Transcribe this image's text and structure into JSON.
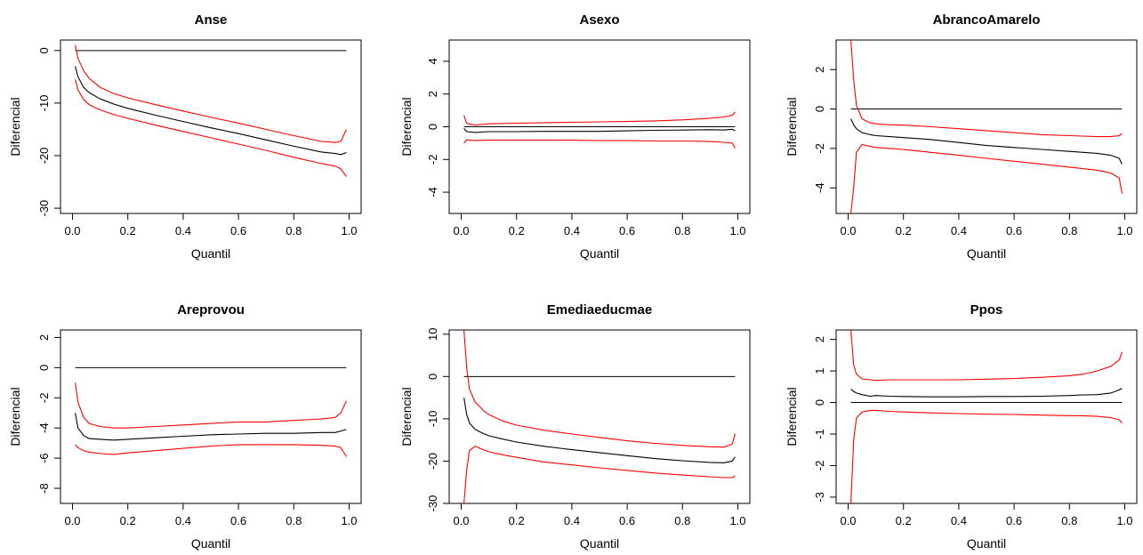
{
  "colors": {
    "estimate": "#000000",
    "bounds": "#ff0000",
    "zero_line": "#000000",
    "axes": "#000000"
  },
  "chart_data": [
    {
      "type": "line",
      "title": "Anse",
      "xlabel": "Quantil",
      "ylabel": "Diferencial",
      "xlim": [
        0,
        1
      ],
      "ylim": [
        -31,
        2
      ],
      "xticks": [
        0.0,
        0.2,
        0.4,
        0.6,
        0.8,
        1.0
      ],
      "xtick_labels": [
        "0.0",
        "0.2",
        "0.4",
        "0.6",
        "0.8",
        "1.0"
      ],
      "yticks": [
        -30,
        -20,
        -10,
        0
      ],
      "ytick_labels": [
        "-30",
        "-20",
        "-10",
        "0"
      ],
      "hline": 0,
      "x": [
        0.01,
        0.02,
        0.04,
        0.06,
        0.1,
        0.15,
        0.2,
        0.3,
        0.4,
        0.5,
        0.6,
        0.7,
        0.8,
        0.9,
        0.95,
        0.97,
        0.99
      ],
      "series": [
        {
          "role": "estimate",
          "values": [
            -3.0,
            -5.0,
            -7.0,
            -8.0,
            -9.2,
            -10.2,
            -11.0,
            -12.3,
            -13.5,
            -14.7,
            -15.8,
            -17.0,
            -18.2,
            -19.3,
            -19.6,
            -19.8,
            -19.4
          ]
        },
        {
          "role": "upper",
          "values": [
            1.0,
            -1.5,
            -3.8,
            -5.3,
            -7.0,
            -8.2,
            -9.0,
            -10.3,
            -11.5,
            -12.7,
            -13.8,
            -15.0,
            -16.2,
            -17.3,
            -17.5,
            -17.3,
            -15.0
          ]
        },
        {
          "role": "lower",
          "values": [
            -5.5,
            -7.5,
            -9.3,
            -10.3,
            -11.3,
            -12.2,
            -12.9,
            -14.2,
            -15.4,
            -16.6,
            -17.8,
            -19.0,
            -20.3,
            -21.5,
            -22.0,
            -22.5,
            -24.0
          ]
        }
      ]
    },
    {
      "type": "line",
      "title": "Asexo",
      "xlabel": "Quantil",
      "ylabel": "Diferencial",
      "xlim": [
        0,
        1
      ],
      "ylim": [
        -5.3,
        5.3
      ],
      "xticks": [
        0.0,
        0.2,
        0.4,
        0.6,
        0.8,
        1.0
      ],
      "xtick_labels": [
        "0.0",
        "0.2",
        "0.4",
        "0.6",
        "0.8",
        "1.0"
      ],
      "yticks": [
        -4,
        -2,
        0,
        2,
        4
      ],
      "ytick_labels": [
        "-4",
        "-2",
        "0",
        "2",
        "4"
      ],
      "hline": 0,
      "x": [
        0.01,
        0.02,
        0.05,
        0.1,
        0.2,
        0.3,
        0.4,
        0.5,
        0.6,
        0.7,
        0.8,
        0.9,
        0.95,
        0.98,
        0.99
      ],
      "series": [
        {
          "role": "estimate",
          "values": [
            -0.1,
            -0.3,
            -0.35,
            -0.3,
            -0.3,
            -0.28,
            -0.28,
            -0.28,
            -0.25,
            -0.22,
            -0.2,
            -0.18,
            -0.2,
            -0.15,
            -0.25
          ]
        },
        {
          "role": "upper",
          "values": [
            0.7,
            0.2,
            0.1,
            0.18,
            0.22,
            0.25,
            0.27,
            0.3,
            0.32,
            0.36,
            0.42,
            0.52,
            0.6,
            0.7,
            0.9
          ]
        },
        {
          "role": "lower",
          "values": [
            -1.0,
            -0.8,
            -0.85,
            -0.82,
            -0.82,
            -0.82,
            -0.82,
            -0.85,
            -0.85,
            -0.87,
            -0.87,
            -0.9,
            -0.95,
            -1.0,
            -1.3
          ]
        }
      ]
    },
    {
      "type": "line",
      "title": "AbrancoAmarelo",
      "xlabel": "Quantil",
      "ylabel": "Diferencial",
      "xlim": [
        0,
        1
      ],
      "ylim": [
        -5.3,
        3.5
      ],
      "xticks": [
        0.0,
        0.2,
        0.4,
        0.6,
        0.8,
        1.0
      ],
      "xtick_labels": [
        "0.0",
        "0.2",
        "0.4",
        "0.6",
        "0.8",
        "1.0"
      ],
      "yticks": [
        -4,
        -2,
        0,
        2
      ],
      "ytick_labels": [
        "-4",
        "-2",
        "0",
        "2"
      ],
      "hline": 0,
      "x": [
        0.01,
        0.02,
        0.03,
        0.05,
        0.08,
        0.1,
        0.15,
        0.2,
        0.3,
        0.4,
        0.5,
        0.6,
        0.7,
        0.8,
        0.9,
        0.95,
        0.98,
        0.99
      ],
      "series": [
        {
          "role": "estimate",
          "values": [
            -0.5,
            -0.8,
            -1.0,
            -1.2,
            -1.3,
            -1.35,
            -1.4,
            -1.45,
            -1.55,
            -1.7,
            -1.85,
            -1.95,
            -2.05,
            -2.15,
            -2.25,
            -2.35,
            -2.5,
            -2.8
          ]
        },
        {
          "role": "upper",
          "values": [
            3.5,
            1.5,
            0.2,
            -0.5,
            -0.7,
            -0.75,
            -0.8,
            -0.82,
            -0.9,
            -1.0,
            -1.1,
            -1.2,
            -1.3,
            -1.35,
            -1.4,
            -1.4,
            -1.35,
            -1.25
          ]
        },
        {
          "role": "lower",
          "values": [
            -5.3,
            -4.0,
            -2.2,
            -1.8,
            -1.9,
            -1.95,
            -2.0,
            -2.05,
            -2.2,
            -2.35,
            -2.5,
            -2.65,
            -2.8,
            -2.95,
            -3.1,
            -3.25,
            -3.5,
            -4.3
          ]
        }
      ]
    },
    {
      "type": "line",
      "title": "Areprovou",
      "xlabel": "Quantil",
      "ylabel": "Diferencial",
      "xlim": [
        0,
        1
      ],
      "ylim": [
        -9,
        2.5
      ],
      "xticks": [
        0.0,
        0.2,
        0.4,
        0.6,
        0.8,
        1.0
      ],
      "xtick_labels": [
        "0.0",
        "0.2",
        "0.4",
        "0.6",
        "0.8",
        "1.0"
      ],
      "yticks": [
        -8,
        -6,
        -4,
        -2,
        0,
        2
      ],
      "ytick_labels": [
        "-8",
        "-6",
        "-4",
        "-2",
        "0",
        "2"
      ],
      "hline": 0,
      "x": [
        0.01,
        0.02,
        0.04,
        0.06,
        0.1,
        0.15,
        0.2,
        0.3,
        0.4,
        0.5,
        0.6,
        0.7,
        0.8,
        0.9,
        0.95,
        0.97,
        0.99
      ],
      "series": [
        {
          "role": "estimate",
          "values": [
            -3.0,
            -4.0,
            -4.5,
            -4.7,
            -4.75,
            -4.8,
            -4.75,
            -4.65,
            -4.55,
            -4.45,
            -4.4,
            -4.35,
            -4.35,
            -4.3,
            -4.3,
            -4.2,
            -4.1
          ]
        },
        {
          "role": "upper",
          "values": [
            -1.0,
            -2.3,
            -3.3,
            -3.7,
            -3.9,
            -4.0,
            -4.0,
            -3.9,
            -3.8,
            -3.7,
            -3.6,
            -3.6,
            -3.5,
            -3.4,
            -3.3,
            -3.0,
            -2.2
          ]
        },
        {
          "role": "lower",
          "values": [
            -5.1,
            -5.3,
            -5.5,
            -5.6,
            -5.7,
            -5.75,
            -5.65,
            -5.5,
            -5.35,
            -5.2,
            -5.1,
            -5.1,
            -5.1,
            -5.15,
            -5.2,
            -5.3,
            -5.9
          ]
        }
      ]
    },
    {
      "type": "line",
      "title": "Emediaeducmae",
      "xlabel": "Quantil",
      "ylabel": "Diferencial",
      "xlim": [
        0,
        1
      ],
      "ylim": [
        -30,
        11
      ],
      "xticks": [
        0.0,
        0.2,
        0.4,
        0.6,
        0.8,
        1.0
      ],
      "xtick_labels": [
        "0.0",
        "0.2",
        "0.4",
        "0.6",
        "0.8",
        "1.0"
      ],
      "yticks": [
        -30,
        -20,
        -10,
        0,
        10
      ],
      "ytick_labels": [
        "-30",
        "-20",
        "-10",
        "0",
        "10"
      ],
      "hline": 0,
      "x": [
        0.01,
        0.02,
        0.03,
        0.05,
        0.08,
        0.1,
        0.15,
        0.2,
        0.3,
        0.4,
        0.5,
        0.6,
        0.7,
        0.8,
        0.9,
        0.95,
        0.98,
        0.99
      ],
      "series": [
        {
          "role": "estimate",
          "values": [
            -5.0,
            -9.0,
            -11.0,
            -12.5,
            -13.5,
            -14.0,
            -14.8,
            -15.5,
            -16.5,
            -17.3,
            -18.0,
            -18.7,
            -19.4,
            -19.9,
            -20.3,
            -20.4,
            -20.0,
            -19.0
          ]
        },
        {
          "role": "upper",
          "values": [
            11.0,
            2.0,
            -3.0,
            -6.0,
            -8.0,
            -9.0,
            -10.5,
            -11.5,
            -12.7,
            -13.6,
            -14.4,
            -15.2,
            -15.8,
            -16.3,
            -16.6,
            -16.7,
            -16.0,
            -13.5
          ]
        },
        {
          "role": "lower",
          "values": [
            -30.0,
            -22.0,
            -17.5,
            -16.5,
            -17.3,
            -17.8,
            -18.5,
            -19.1,
            -20.2,
            -20.9,
            -21.6,
            -22.2,
            -22.8,
            -23.3,
            -23.7,
            -23.9,
            -23.9,
            -23.5
          ]
        }
      ]
    },
    {
      "type": "line",
      "title": "Ppos",
      "xlabel": "Quantil",
      "ylabel": "Diferencial",
      "xlim": [
        0,
        1
      ],
      "ylim": [
        -3.2,
        2.3
      ],
      "xticks": [
        0.0,
        0.2,
        0.4,
        0.6,
        0.8,
        1.0
      ],
      "xtick_labels": [
        "0.0",
        "0.2",
        "0.4",
        "0.6",
        "0.8",
        "1.0"
      ],
      "yticks": [
        -3,
        -2,
        -1,
        0,
        1,
        2
      ],
      "ytick_labels": [
        "-3",
        "-2",
        "-1",
        "0",
        "1",
        "2"
      ],
      "hline": 0,
      "x": [
        0.01,
        0.02,
        0.03,
        0.05,
        0.08,
        0.1,
        0.15,
        0.2,
        0.3,
        0.4,
        0.5,
        0.6,
        0.7,
        0.8,
        0.85,
        0.9,
        0.95,
        0.98,
        0.99
      ],
      "series": [
        {
          "role": "estimate",
          "values": [
            0.42,
            0.35,
            0.3,
            0.25,
            0.2,
            0.22,
            0.2,
            0.19,
            0.18,
            0.18,
            0.19,
            0.19,
            0.2,
            0.22,
            0.24,
            0.25,
            0.3,
            0.4,
            0.45
          ]
        },
        {
          "role": "upper",
          "values": [
            2.3,
            1.2,
            0.9,
            0.75,
            0.72,
            0.7,
            0.72,
            0.72,
            0.72,
            0.72,
            0.74,
            0.76,
            0.8,
            0.85,
            0.9,
            1.0,
            1.15,
            1.35,
            1.6
          ]
        },
        {
          "role": "lower",
          "values": [
            -3.2,
            -1.2,
            -0.5,
            -0.3,
            -0.25,
            -0.25,
            -0.28,
            -0.3,
            -0.33,
            -0.35,
            -0.37,
            -0.38,
            -0.4,
            -0.42,
            -0.42,
            -0.44,
            -0.48,
            -0.55,
            -0.65
          ]
        }
      ]
    }
  ]
}
